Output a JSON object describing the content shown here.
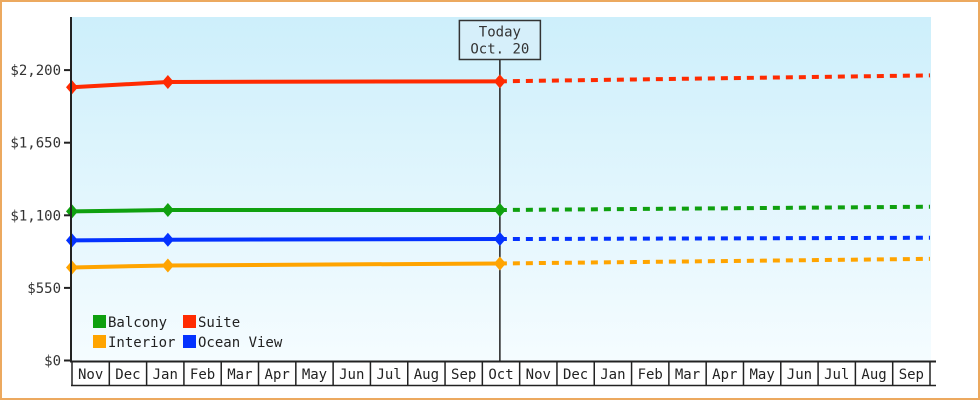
{
  "window": {
    "border_color": "#ECA95F",
    "background_color": "#FFFFFF"
  },
  "chart_data": {
    "type": "line",
    "title": "",
    "plot": {
      "bg_top_color": "#CDEFFB",
      "bg_bottom_color": "#F5FCFF",
      "axis_color": "#222222",
      "text_color": "#333333",
      "annotation_bg_color": "#D6EFFA"
    },
    "y_axis": {
      "ticks": [
        {
          "label": "$0",
          "value": 0
        },
        {
          "label": "$550",
          "value": 550
        },
        {
          "label": "$1,100",
          "value": 1100
        },
        {
          "label": "$1,650",
          "value": 1650
        },
        {
          "label": "$2,200",
          "value": 2200
        }
      ],
      "ylim": [
        0,
        2600
      ]
    },
    "x_axis": {
      "months": [
        "Nov",
        "Dec",
        "Jan",
        "Feb",
        "Mar",
        "Apr",
        "May",
        "Jun",
        "Jul",
        "Aug",
        "Sep",
        "Oct",
        "Nov",
        "Dec",
        "Jan",
        "Feb",
        "Mar",
        "Apr",
        "May",
        "Jun",
        "Jul",
        "Aug",
        "Sep"
      ]
    },
    "today": {
      "title": "Today",
      "date": "Oct. 20",
      "month_position": 11.47
    },
    "series": [
      {
        "name": "Suite",
        "color": "#FF2B01",
        "history": {
          "month_x": [
            0,
            2.57,
            11.47
          ],
          "prices": [
            2070,
            2110,
            2115
          ]
        },
        "forecast": {
          "month_x": [
            11.47,
            23
          ],
          "prices": [
            2115,
            2160
          ]
        }
      },
      {
        "name": "Balcony",
        "color": "#0FA00F",
        "history": {
          "month_x": [
            0,
            2.57,
            11.47
          ],
          "prices": [
            1130,
            1140,
            1140
          ]
        },
        "forecast": {
          "month_x": [
            11.47,
            23
          ],
          "prices": [
            1140,
            1165
          ]
        }
      },
      {
        "name": "Ocean View",
        "color": "#0432FF",
        "history": {
          "month_x": [
            0,
            2.57,
            11.47
          ],
          "prices": [
            910,
            915,
            920
          ]
        },
        "forecast": {
          "month_x": [
            11.47,
            23
          ],
          "prices": [
            920,
            930
          ]
        }
      },
      {
        "name": "Interior",
        "color": "#FFA400",
        "history": {
          "month_x": [
            0,
            2.57,
            11.47
          ],
          "prices": [
            705,
            720,
            735
          ]
        },
        "forecast": {
          "month_x": [
            11.47,
            23
          ],
          "prices": [
            735,
            770
          ]
        }
      }
    ],
    "legend": {
      "rows": [
        [
          "Balcony",
          "Suite"
        ],
        [
          "Interior",
          "Ocean View"
        ]
      ]
    }
  }
}
